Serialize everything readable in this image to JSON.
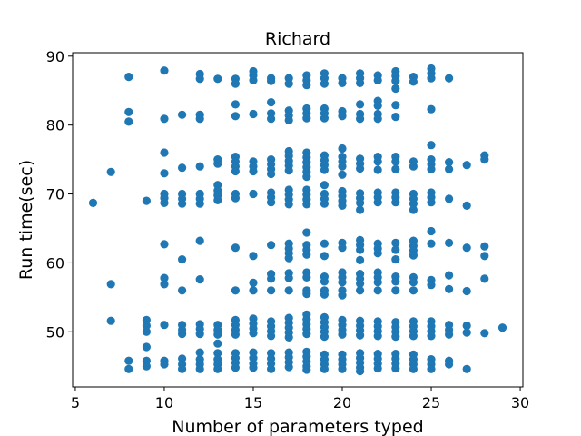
{
  "chart_data": {
    "type": "scatter",
    "title": "Richard",
    "xlabel": "Number of parameters typed",
    "ylabel": "Run time(sec)",
    "xlim": [
      4.85,
      30.15
    ],
    "ylim": [
      42.0,
      90.5
    ],
    "xticks": [
      5,
      10,
      15,
      20,
      25,
      30
    ],
    "yticks": [
      50,
      60,
      70,
      80,
      90
    ],
    "grid": false,
    "marker_color": "#1f77b4",
    "points": [
      [
        6,
        68.7
      ],
      [
        7,
        73.2
      ],
      [
        7,
        56.9
      ],
      [
        7,
        51.6
      ],
      [
        8,
        87.0
      ],
      [
        8,
        81.9
      ],
      [
        8,
        80.5
      ],
      [
        8,
        45.8
      ],
      [
        8,
        44.6
      ],
      [
        9,
        69.0
      ],
      [
        9,
        51.7
      ],
      [
        9,
        50.9
      ],
      [
        9,
        50.0
      ],
      [
        9,
        47.8
      ],
      [
        9,
        45.8
      ],
      [
        9,
        45.0
      ],
      [
        10,
        87.9
      ],
      [
        10,
        80.9
      ],
      [
        10,
        76.0
      ],
      [
        10,
        73.0
      ],
      [
        10,
        70.0
      ],
      [
        10,
        69.4
      ],
      [
        10,
        68.7
      ],
      [
        10,
        62.7
      ],
      [
        10,
        57.8
      ],
      [
        10,
        56.9
      ],
      [
        10,
        51.0
      ],
      [
        10,
        45.8
      ],
      [
        10,
        45.3
      ],
      [
        11,
        81.5
      ],
      [
        11,
        73.8
      ],
      [
        11,
        70.0
      ],
      [
        11,
        69.3
      ],
      [
        11,
        68.6
      ],
      [
        11,
        60.5
      ],
      [
        11,
        56.0
      ],
      [
        11,
        51.0
      ],
      [
        11,
        50.3
      ],
      [
        11,
        49.7
      ],
      [
        11,
        46.1
      ],
      [
        11,
        45.3
      ],
      [
        11,
        44.6
      ],
      [
        12,
        87.4
      ],
      [
        12,
        86.7
      ],
      [
        12,
        81.5
      ],
      [
        12,
        80.9
      ],
      [
        12,
        74.0
      ],
      [
        12,
        70.0
      ],
      [
        12,
        69.3
      ],
      [
        12,
        68.6
      ],
      [
        12,
        63.2
      ],
      [
        12,
        57.6
      ],
      [
        12,
        51.1
      ],
      [
        12,
        50.4
      ],
      [
        12,
        49.7
      ],
      [
        12,
        47.0
      ],
      [
        12,
        46.0
      ],
      [
        12,
        45.3
      ],
      [
        12,
        44.6
      ],
      [
        13,
        86.7
      ],
      [
        13,
        75.0
      ],
      [
        13,
        74.4
      ],
      [
        13,
        71.3
      ],
      [
        13,
        70.5
      ],
      [
        13,
        69.8
      ],
      [
        13,
        69.1
      ],
      [
        13,
        51.0
      ],
      [
        13,
        50.3
      ],
      [
        13,
        49.6
      ],
      [
        13,
        48.3
      ],
      [
        13,
        46.9
      ],
      [
        13,
        46.0
      ],
      [
        13,
        45.3
      ],
      [
        13,
        44.6
      ],
      [
        14,
        86.7
      ],
      [
        14,
        86.0
      ],
      [
        14,
        83.0
      ],
      [
        14,
        81.3
      ],
      [
        14,
        75.4
      ],
      [
        14,
        74.7
      ],
      [
        14,
        74.0
      ],
      [
        14,
        73.3
      ],
      [
        14,
        70.0
      ],
      [
        14,
        69.4
      ],
      [
        14,
        62.2
      ],
      [
        14,
        56.0
      ],
      [
        14,
        51.7
      ],
      [
        14,
        51.0
      ],
      [
        14,
        50.3
      ],
      [
        14,
        49.6
      ],
      [
        14,
        46.9
      ],
      [
        14,
        46.2
      ],
      [
        14,
        45.5
      ],
      [
        14,
        44.8
      ],
      [
        15,
        87.8
      ],
      [
        15,
        87.2
      ],
      [
        15,
        86.5
      ],
      [
        15,
        81.6
      ],
      [
        15,
        74.7
      ],
      [
        15,
        74.0
      ],
      [
        15,
        73.3
      ],
      [
        15,
        70.0
      ],
      [
        15,
        61.0
      ],
      [
        15,
        57.1
      ],
      [
        15,
        56.0
      ],
      [
        15,
        51.9
      ],
      [
        15,
        51.2
      ],
      [
        15,
        50.5
      ],
      [
        15,
        49.8
      ],
      [
        15,
        47.0
      ],
      [
        15,
        46.2
      ],
      [
        15,
        45.4
      ],
      [
        15,
        44.8
      ],
      [
        16,
        86.8
      ],
      [
        16,
        86.4
      ],
      [
        16,
        83.3
      ],
      [
        16,
        81.7
      ],
      [
        16,
        80.9
      ],
      [
        16,
        75.0
      ],
      [
        16,
        74.3
      ],
      [
        16,
        73.6
      ],
      [
        16,
        72.9
      ],
      [
        16,
        70.2
      ],
      [
        16,
        69.5
      ],
      [
        16,
        68.8
      ],
      [
        16,
        62.6
      ],
      [
        16,
        58.4
      ],
      [
        16,
        57.7
      ],
      [
        16,
        56.0
      ],
      [
        16,
        51.5
      ],
      [
        16,
        50.8
      ],
      [
        16,
        50.1
      ],
      [
        16,
        49.4
      ],
      [
        16,
        46.9
      ],
      [
        16,
        46.1
      ],
      [
        16,
        45.4
      ],
      [
        16,
        44.6
      ],
      [
        17,
        86.8
      ],
      [
        17,
        86.0
      ],
      [
        17,
        82.1
      ],
      [
        17,
        81.4
      ],
      [
        17,
        80.7
      ],
      [
        17,
        76.2
      ],
      [
        17,
        75.5
      ],
      [
        17,
        74.8
      ],
      [
        17,
        74.1
      ],
      [
        17,
        73.4
      ],
      [
        17,
        70.6
      ],
      [
        17,
        69.9
      ],
      [
        17,
        69.2
      ],
      [
        17,
        68.5
      ],
      [
        17,
        62.8
      ],
      [
        17,
        62.1
      ],
      [
        17,
        61.4
      ],
      [
        17,
        60.7
      ],
      [
        17,
        58.5
      ],
      [
        17,
        57.8
      ],
      [
        17,
        56.0
      ],
      [
        17,
        52.0
      ],
      [
        17,
        51.3
      ],
      [
        17,
        50.6
      ],
      [
        17,
        49.9
      ],
      [
        17,
        49.2
      ],
      [
        17,
        47.0
      ],
      [
        17,
        46.3
      ],
      [
        17,
        45.6
      ],
      [
        17,
        44.9
      ],
      [
        18,
        87.2
      ],
      [
        18,
        86.5
      ],
      [
        18,
        85.8
      ],
      [
        18,
        82.4
      ],
      [
        18,
        81.7
      ],
      [
        18,
        81.0
      ],
      [
        18,
        76.0
      ],
      [
        18,
        75.3
      ],
      [
        18,
        74.6
      ],
      [
        18,
        73.9
      ],
      [
        18,
        73.2
      ],
      [
        18,
        72.5
      ],
      [
        18,
        70.6
      ],
      [
        18,
        69.9
      ],
      [
        18,
        69.2
      ],
      [
        18,
        68.5
      ],
      [
        18,
        64.4
      ],
      [
        18,
        62.6
      ],
      [
        18,
        61.9
      ],
      [
        18,
        61.2
      ],
      [
        18,
        58.6
      ],
      [
        18,
        57.9
      ],
      [
        18,
        56.0
      ],
      [
        18,
        55.5
      ],
      [
        18,
        52.5
      ],
      [
        18,
        51.8
      ],
      [
        18,
        51.1
      ],
      [
        18,
        50.4
      ],
      [
        18,
        49.7
      ],
      [
        18,
        47.1
      ],
      [
        18,
        46.4
      ],
      [
        18,
        45.7
      ],
      [
        18,
        45.0
      ],
      [
        18,
        44.5
      ],
      [
        19,
        87.5
      ],
      [
        19,
        86.8
      ],
      [
        19,
        86.0
      ],
      [
        19,
        82.4
      ],
      [
        19,
        81.7
      ],
      [
        19,
        81.0
      ],
      [
        19,
        75.6
      ],
      [
        19,
        74.9
      ],
      [
        19,
        74.2
      ],
      [
        19,
        73.5
      ],
      [
        19,
        71.3
      ],
      [
        19,
        70.0
      ],
      [
        19,
        69.3
      ],
      [
        19,
        68.6
      ],
      [
        19,
        62.8
      ],
      [
        19,
        61.0
      ],
      [
        19,
        58.0
      ],
      [
        19,
        57.3
      ],
      [
        19,
        56.0
      ],
      [
        19,
        55.4
      ],
      [
        19,
        52.1
      ],
      [
        19,
        51.4
      ],
      [
        19,
        50.7
      ],
      [
        19,
        50.0
      ],
      [
        19,
        49.3
      ],
      [
        19,
        46.7
      ],
      [
        19,
        46.0
      ],
      [
        19,
        45.3
      ],
      [
        19,
        44.6
      ],
      [
        20,
        86.8
      ],
      [
        20,
        86.1
      ],
      [
        20,
        82.0
      ],
      [
        20,
        81.3
      ],
      [
        20,
        76.6
      ],
      [
        20,
        75.4
      ],
      [
        20,
        74.7
      ],
      [
        20,
        74.0
      ],
      [
        20,
        72.8
      ],
      [
        20,
        70.4
      ],
      [
        20,
        69.7
      ],
      [
        20,
        69.0
      ],
      [
        20,
        68.3
      ],
      [
        20,
        62.9
      ],
      [
        20,
        62.2
      ],
      [
        20,
        58.6
      ],
      [
        20,
        57.9
      ],
      [
        20,
        57.2
      ],
      [
        20,
        56.0
      ],
      [
        20,
        55.3
      ],
      [
        20,
        51.7
      ],
      [
        20,
        51.0
      ],
      [
        20,
        50.3
      ],
      [
        20,
        49.6
      ],
      [
        20,
        46.7
      ],
      [
        20,
        46.0
      ],
      [
        20,
        45.3
      ],
      [
        20,
        44.6
      ],
      [
        21,
        87.5
      ],
      [
        21,
        86.8
      ],
      [
        21,
        86.1
      ],
      [
        21,
        83.0
      ],
      [
        21,
        81.6
      ],
      [
        21,
        80.9
      ],
      [
        21,
        75.1
      ],
      [
        21,
        74.4
      ],
      [
        21,
        73.7
      ],
      [
        21,
        70.1
      ],
      [
        21,
        69.4
      ],
      [
        21,
        68.7
      ],
      [
        21,
        67.7
      ],
      [
        21,
        63.3
      ],
      [
        21,
        62.6
      ],
      [
        21,
        61.9
      ],
      [
        21,
        60.4
      ],
      [
        21,
        58.4
      ],
      [
        21,
        57.7
      ],
      [
        21,
        57.0
      ],
      [
        21,
        56.0
      ],
      [
        21,
        51.6
      ],
      [
        21,
        50.9
      ],
      [
        21,
        50.2
      ],
      [
        21,
        49.5
      ],
      [
        21,
        46.9
      ],
      [
        21,
        46.2
      ],
      [
        21,
        45.5
      ],
      [
        21,
        44.8
      ],
      [
        21,
        44.3
      ],
      [
        22,
        87.2
      ],
      [
        22,
        86.5
      ],
      [
        22,
        83.5
      ],
      [
        22,
        82.8
      ],
      [
        22,
        81.6
      ],
      [
        22,
        80.9
      ],
      [
        22,
        75.4
      ],
      [
        22,
        74.7
      ],
      [
        22,
        73.5
      ],
      [
        22,
        70.2
      ],
      [
        22,
        69.5
      ],
      [
        22,
        68.8
      ],
      [
        22,
        62.8
      ],
      [
        22,
        62.1
      ],
      [
        22,
        61.4
      ],
      [
        22,
        58.6
      ],
      [
        22,
        57.9
      ],
      [
        22,
        57.2
      ],
      [
        22,
        56.0
      ],
      [
        22,
        51.5
      ],
      [
        22,
        50.8
      ],
      [
        22,
        50.1
      ],
      [
        22,
        49.4
      ],
      [
        22,
        46.8
      ],
      [
        22,
        46.1
      ],
      [
        22,
        45.4
      ],
      [
        22,
        44.7
      ],
      [
        23,
        87.8
      ],
      [
        23,
        87.1
      ],
      [
        23,
        86.4
      ],
      [
        23,
        85.3
      ],
      [
        23,
        82.9
      ],
      [
        23,
        81.2
      ],
      [
        23,
        75.4
      ],
      [
        23,
        74.7
      ],
      [
        23,
        73.6
      ],
      [
        23,
        70.2
      ],
      [
        23,
        69.5
      ],
      [
        23,
        68.8
      ],
      [
        23,
        62.9
      ],
      [
        23,
        61.9
      ],
      [
        23,
        60.5
      ],
      [
        23,
        58.0
      ],
      [
        23,
        57.3
      ],
      [
        23,
        56.0
      ],
      [
        23,
        51.4
      ],
      [
        23,
        50.7
      ],
      [
        23,
        50.0
      ],
      [
        23,
        49.3
      ],
      [
        23,
        46.8
      ],
      [
        23,
        46.1
      ],
      [
        23,
        45.4
      ],
      [
        23,
        44.7
      ],
      [
        24,
        87.0
      ],
      [
        24,
        86.3
      ],
      [
        24,
        74.7
      ],
      [
        24,
        74.0
      ],
      [
        24,
        70.0
      ],
      [
        24,
        69.3
      ],
      [
        24,
        68.6
      ],
      [
        24,
        67.7
      ],
      [
        24,
        63.2
      ],
      [
        24,
        62.5
      ],
      [
        24,
        61.8
      ],
      [
        24,
        61.1
      ],
      [
        24,
        57.9
      ],
      [
        24,
        57.2
      ],
      [
        24,
        56.0
      ],
      [
        24,
        51.5
      ],
      [
        24,
        50.8
      ],
      [
        24,
        50.1
      ],
      [
        24,
        49.4
      ],
      [
        24,
        46.7
      ],
      [
        24,
        46.0
      ],
      [
        24,
        45.3
      ],
      [
        24,
        44.6
      ],
      [
        25,
        88.2
      ],
      [
        25,
        87.5
      ],
      [
        25,
        86.8
      ],
      [
        25,
        82.3
      ],
      [
        25,
        77.1
      ],
      [
        25,
        75.0
      ],
      [
        25,
        74.3
      ],
      [
        25,
        73.6
      ],
      [
        25,
        70.2
      ],
      [
        25,
        69.5
      ],
      [
        25,
        68.8
      ],
      [
        25,
        64.6
      ],
      [
        25,
        62.8
      ],
      [
        25,
        57.5
      ],
      [
        25,
        56.8
      ],
      [
        25,
        51.5
      ],
      [
        25,
        50.8
      ],
      [
        25,
        50.1
      ],
      [
        25,
        49.4
      ],
      [
        25,
        46.0
      ],
      [
        25,
        45.3
      ],
      [
        25,
        44.6
      ],
      [
        26,
        86.8
      ],
      [
        26,
        74.6
      ],
      [
        26,
        73.6
      ],
      [
        26,
        69.3
      ],
      [
        26,
        62.9
      ],
      [
        26,
        58.2
      ],
      [
        26,
        56.2
      ],
      [
        26,
        51.0
      ],
      [
        26,
        50.3
      ],
      [
        26,
        49.6
      ],
      [
        26,
        45.8
      ],
      [
        26,
        45.3
      ],
      [
        27,
        74.2
      ],
      [
        27,
        68.3
      ],
      [
        27,
        62.2
      ],
      [
        27,
        55.9
      ],
      [
        27,
        50.9
      ],
      [
        27,
        49.9
      ],
      [
        27,
        44.6
      ],
      [
        28,
        75.6
      ],
      [
        28,
        75.0
      ],
      [
        28,
        62.4
      ],
      [
        28,
        61.0
      ],
      [
        28,
        57.7
      ],
      [
        28,
        49.8
      ],
      [
        29,
        50.6
      ]
    ]
  }
}
